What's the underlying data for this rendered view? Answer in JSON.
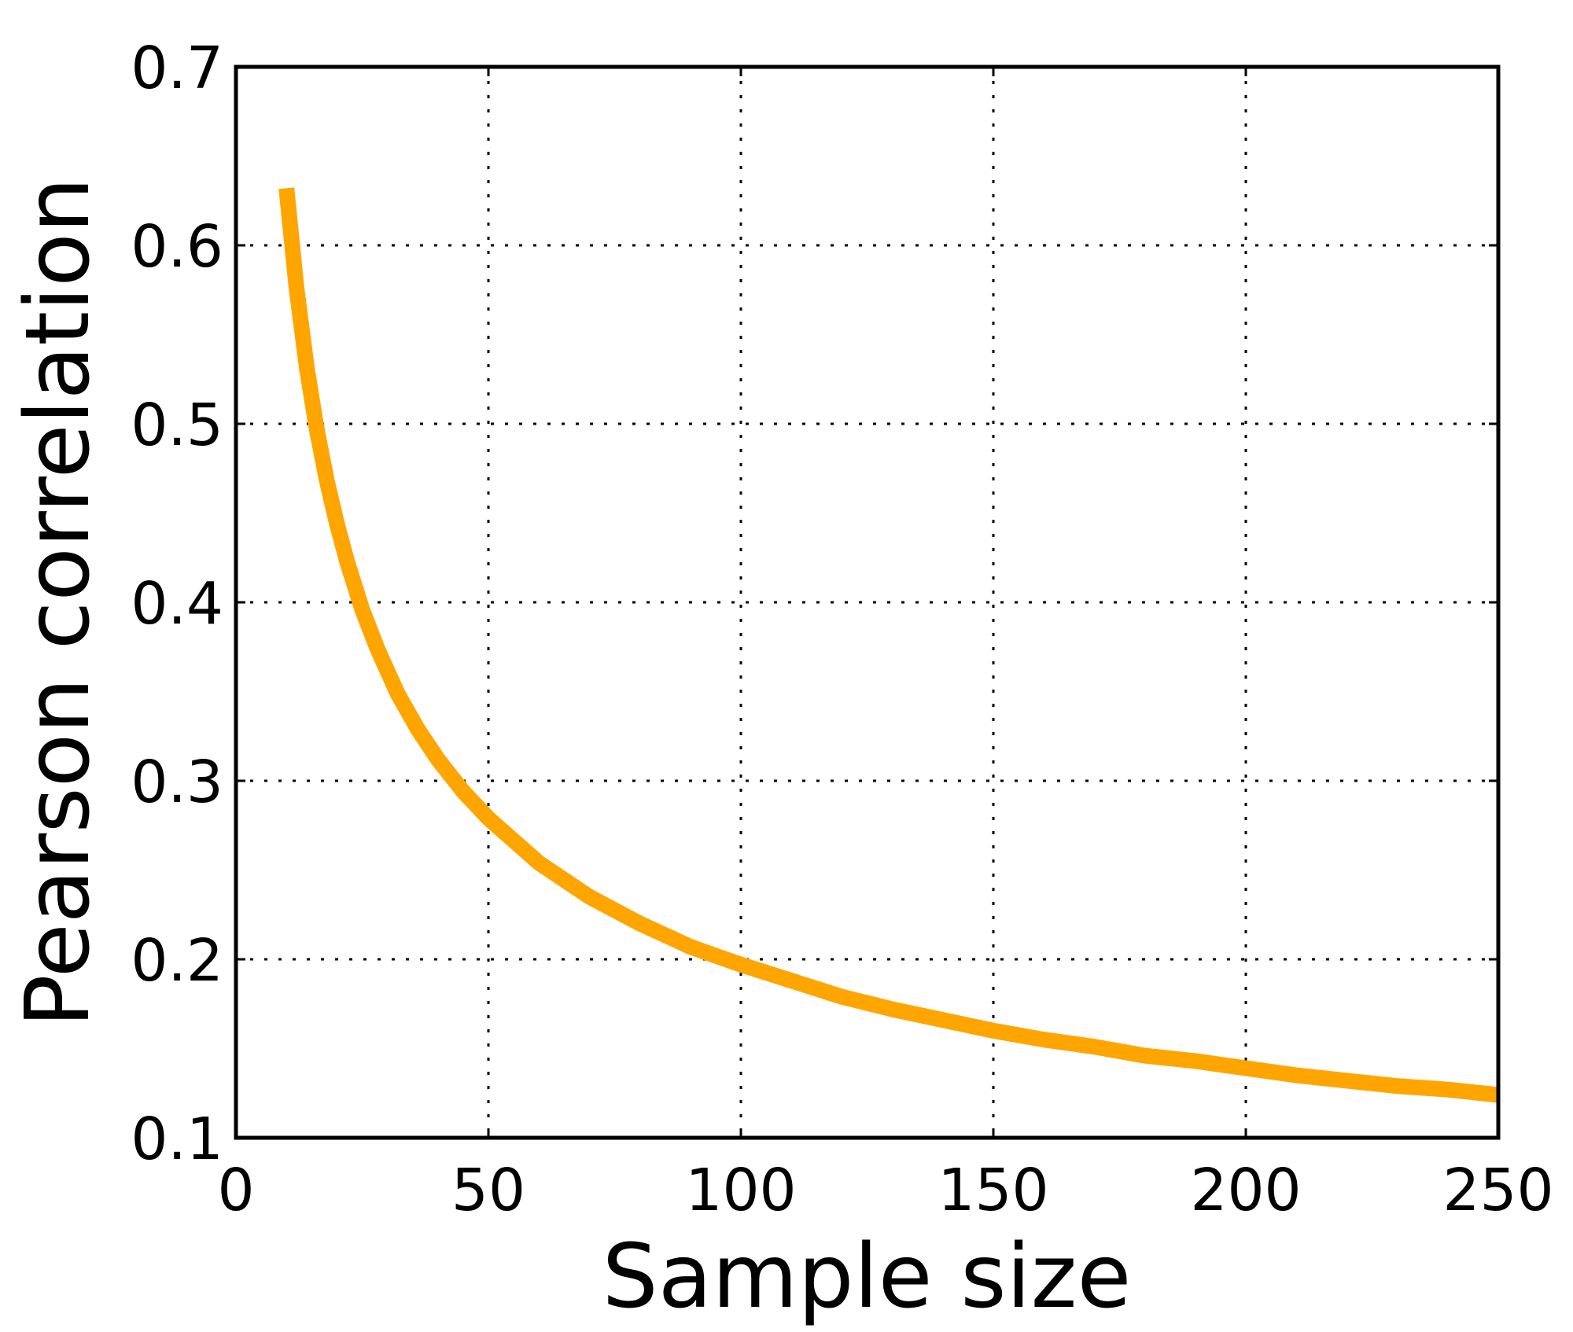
{
  "chart_data": {
    "type": "line",
    "title": "",
    "xlabel": "Sample size",
    "ylabel": "Pearson correlation",
    "xlim": [
      0,
      250
    ],
    "ylim": [
      0.1,
      0.7
    ],
    "xticks": [
      0,
      50,
      100,
      150,
      200,
      250
    ],
    "xtick_labels": [
      "0",
      "50",
      "100",
      "150",
      "200",
      "250"
    ],
    "yticks": [
      0.1,
      0.2,
      0.3,
      0.4,
      0.5,
      0.6,
      0.7
    ],
    "ytick_labels": [
      "0.1",
      "0.2",
      "0.3",
      "0.4",
      "0.5",
      "0.6",
      "0.7"
    ],
    "grid": true,
    "series": [
      {
        "color": "#ffa500",
        "x": [
          10,
          12,
          14,
          16,
          18,
          20,
          22,
          25,
          28,
          32,
          36,
          40,
          45,
          50,
          60,
          70,
          80,
          90,
          100,
          110,
          120,
          130,
          140,
          150,
          160,
          170,
          180,
          190,
          200,
          210,
          220,
          230,
          240,
          250
        ],
        "y": [
          0.632,
          0.576,
          0.532,
          0.497,
          0.468,
          0.444,
          0.423,
          0.396,
          0.374,
          0.349,
          0.329,
          0.312,
          0.294,
          0.279,
          0.254,
          0.235,
          0.22,
          0.207,
          0.197,
          0.188,
          0.179,
          0.172,
          0.166,
          0.16,
          0.155,
          0.151,
          0.146,
          0.143,
          0.139,
          0.135,
          0.132,
          0.129,
          0.127,
          0.124
        ]
      }
    ]
  }
}
